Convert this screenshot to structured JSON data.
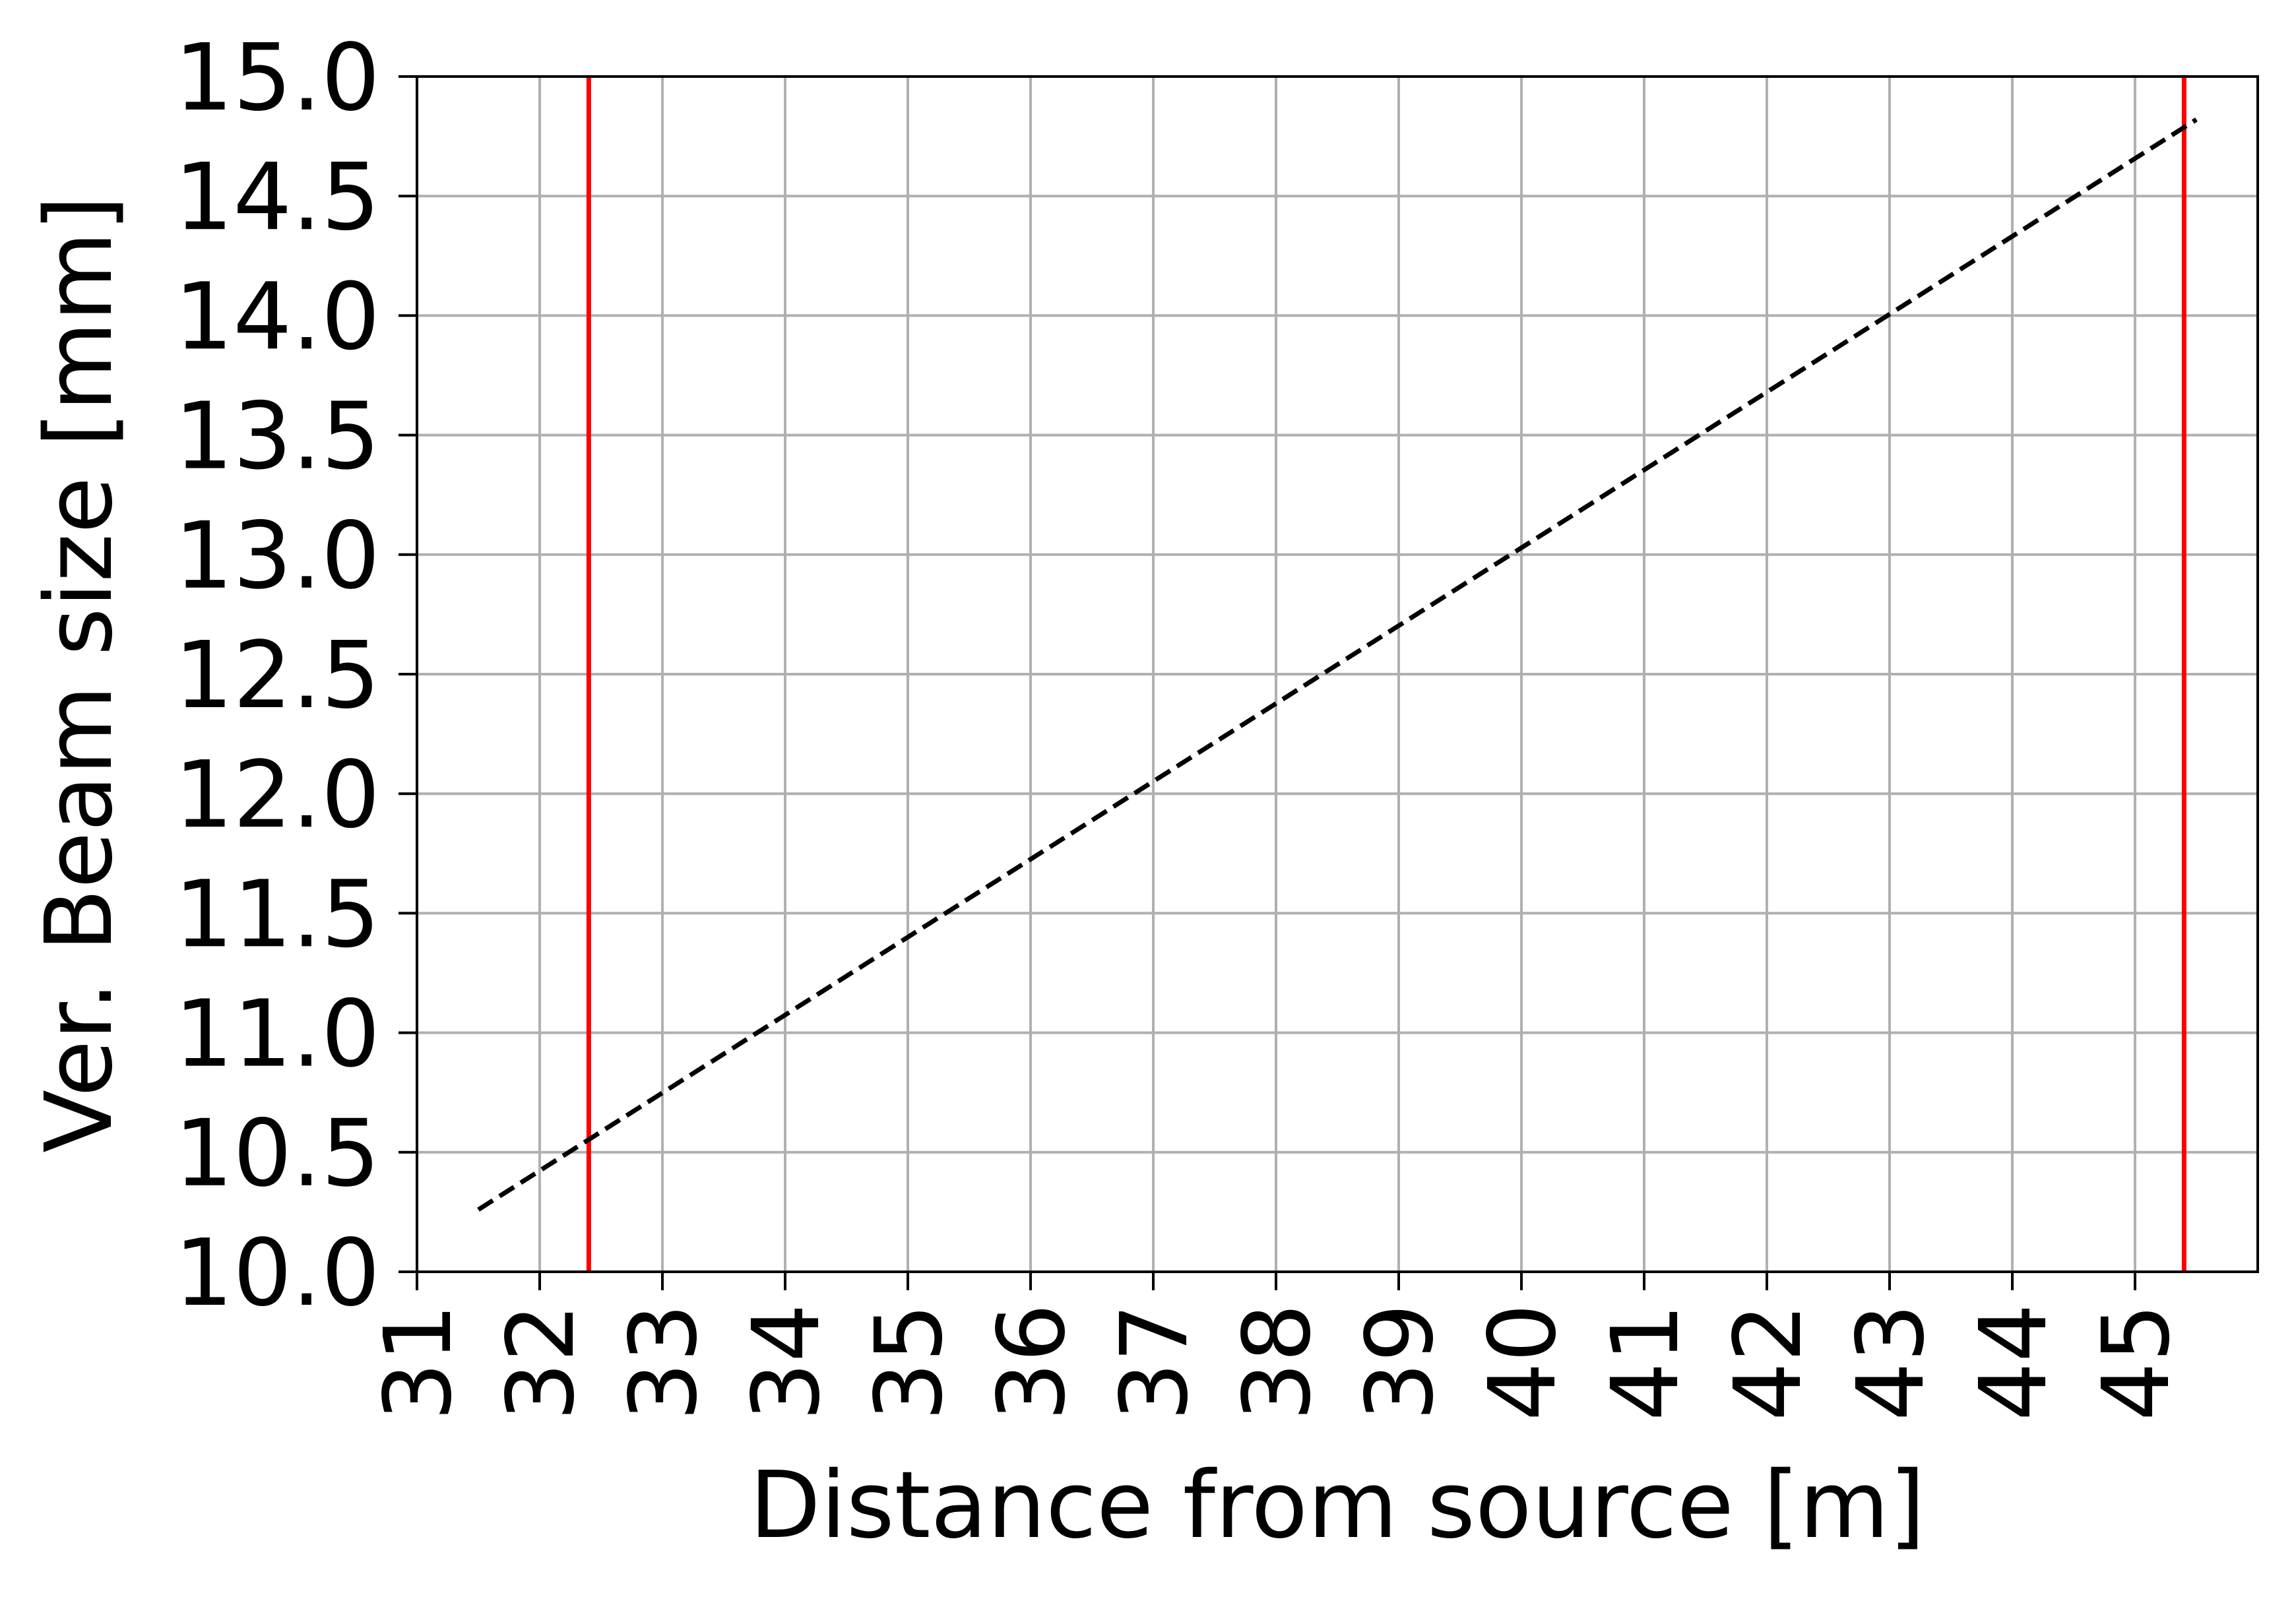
{
  "chart_data": {
    "type": "line",
    "title": "",
    "xlabel": "Distance from source [m]",
    "ylabel": "Ver. Beam size [mm]",
    "xlim": [
      31.0,
      46.0
    ],
    "ylim": [
      10.0,
      15.0
    ],
    "x_ticks": [
      31,
      32,
      33,
      34,
      35,
      36,
      37,
      38,
      39,
      40,
      41,
      42,
      43,
      44,
      45
    ],
    "y_ticks": [
      "10.0",
      "10.5",
      "11.0",
      "11.5",
      "12.0",
      "12.5",
      "13.0",
      "13.5",
      "14.0",
      "14.5",
      "15.0"
    ],
    "grid": true,
    "series": [
      {
        "color": "#000000",
        "line_style": "dashed",
        "x": [
          31.5,
          45.5
        ],
        "y": [
          10.26,
          14.82
        ]
      }
    ],
    "vertical_lines": [
      {
        "x": 32.4,
        "color": "#ff0000"
      },
      {
        "x": 45.4,
        "color": "#ff0000"
      }
    ]
  }
}
